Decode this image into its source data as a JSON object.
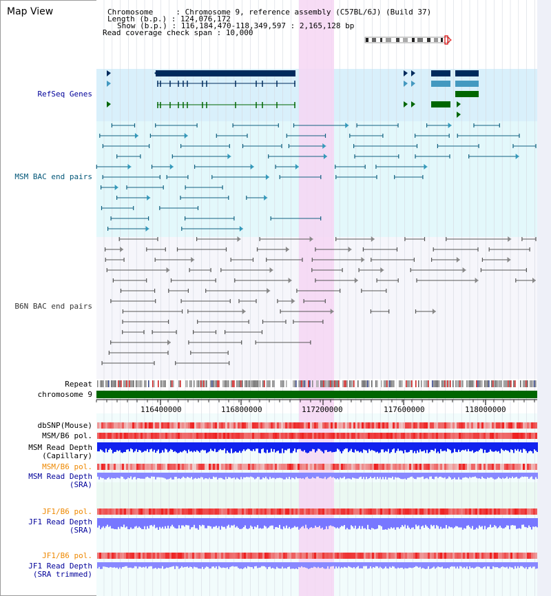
{
  "title": "Map View",
  "header": {
    "chromosome_label": "Chromosome     : ",
    "chromosome_value": "Chromosome 9, reference assembly (C57BL/6J) (Build 37)",
    "length_label": "Length (b.p.) : ",
    "length_value": "124,076,172",
    "show_label": "Show (b.p.) : ",
    "show_value": "116,184,470-118,349,597 : 2,165,128 bp",
    "coverage_label": "Read coverage check span : ",
    "coverage_value": "10,000"
  },
  "tracks": {
    "refseq": "RefSeq Genes",
    "msm_bac": "MSM BAC end pairs",
    "b6n_bac": "B6N BAC end pairs",
    "repeat": "Repeat",
    "chromosome": "chromosome 9",
    "dbsnp": "dbSNP(Mouse)",
    "msm_b6_pol_1": "MSM/B6 pol.",
    "msm_depth_cap_1": "MSM Read Depth",
    "msm_depth_cap_2": "(Capillary)",
    "msm_b6_pol_2": "MSM/B6 pol.",
    "msm_depth_sra_1": "MSM Read Depth",
    "msm_depth_sra_2": "(SRA)",
    "jf1_b6_pol_1": "JF1/B6 pol.",
    "jf1_depth_sra_1": "JF1 Read Depth",
    "jf1_depth_sra_2": "(SRA)",
    "jf1_b6_pol_2": "JF1/B6 pol.",
    "jf1_depth_trim_1": "JF1 Read Depth",
    "jf1_depth_trim_2": "(SRA trimmed)"
  },
  "axis": {
    "ticks": [
      "116400000",
      "116800000",
      "117200000",
      "117600000",
      "118000000"
    ]
  },
  "colors": {
    "highlight": "#f6d6f3",
    "refseq_bg": "#d9f0fb",
    "bac_bg": "#e3f8fb",
    "gene_dark": "#002a5c",
    "gene_light": "#4499c0",
    "gene_green": "#006600",
    "chromosome_bar": "#006600",
    "pol_red": "#ee1111",
    "depth_blue": "#1122ee",
    "depth_violet": "#8888ff"
  }
}
